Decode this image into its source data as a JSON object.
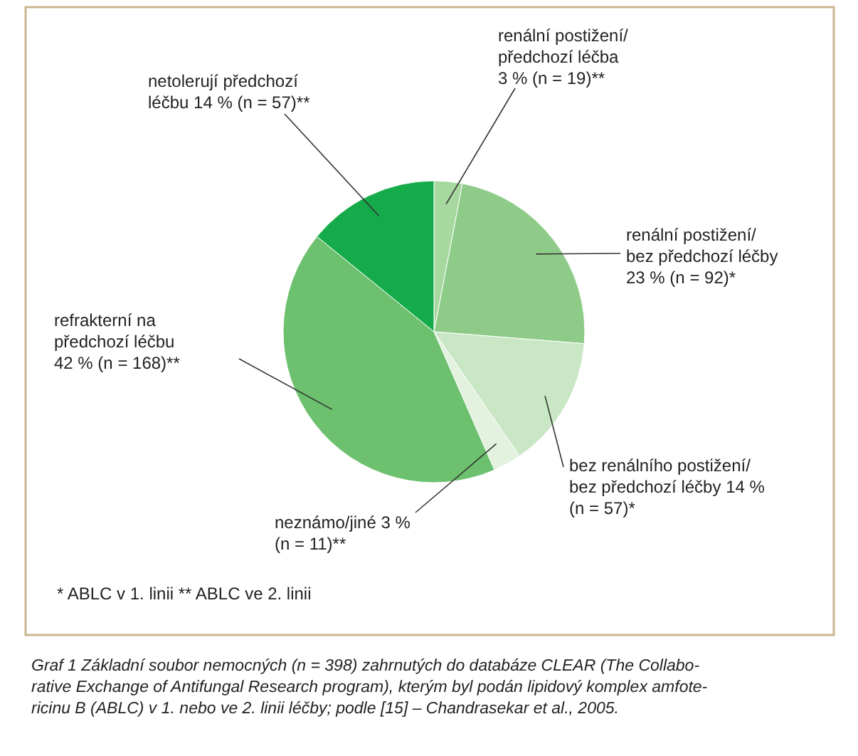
{
  "chart_data": {
    "type": "pie",
    "categories": [
      "renální postižení/\npředchozí léčba\n3 % (n = 19)**",
      "renální postižení/\nbez předchozí léčby\n23 % (n = 92)*",
      "bez renálního postižení/\nbez předchozí léčby 14 %\n(n = 57)*",
      "neznámo/jiné 3 %\n(n = 11)**",
      "refrakterní na\npředchozí léčbu\n42 % (n = 168)**",
      "netolerují předchozí\nléčbu 14 % (n = 57)**"
    ],
    "values": [
      3,
      23,
      14,
      3,
      42,
      14
    ],
    "colors": [
      "#a6d8a0",
      "#8ecb88",
      "#c9e7c4",
      "#e2f2df",
      "#6cc06e",
      "#16ab4a"
    ],
    "annotations": [
      "*  ABLC v 1. linii      ** ABLC ve 2. linii",
      "Graf 1  Základní soubor nemocných (n = 398) zahrnutých do databáze CLEAR (The Collabo-\nrative Exchange of Antifungal Research program), kterým byl podán lipidový komplex amfote-\nricinu B (ABLC) v 1. nebo ve 2. linii léčby; podle [15] – Chandrasekar et al., 2005."
    ]
  }
}
